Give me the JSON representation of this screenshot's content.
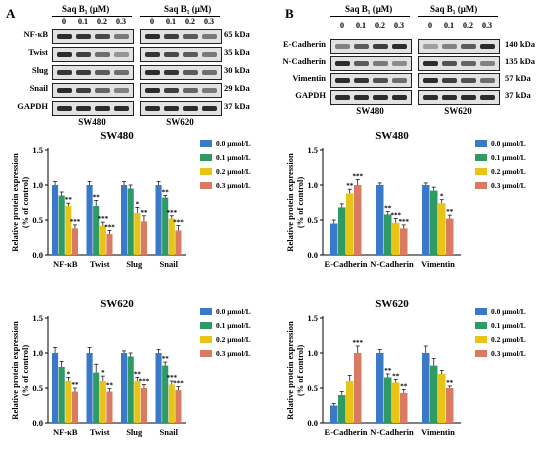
{
  "panels": [
    {
      "letter": "A",
      "blots": {
        "treatment_labels": [
          "Saq B₁ (μM)",
          "Saq B₁ (μM)"
        ],
        "concentrations": [
          "0",
          "0.1",
          "0.2",
          "0.3"
        ],
        "cell_lines": [
          "SW480",
          "SW620"
        ],
        "rows": [
          {
            "protein": "NF-κB",
            "kda": "65 kDa"
          },
          {
            "protein": "Twist",
            "kda": "35 kDa"
          },
          {
            "protein": "Slug",
            "kda": "30 kDa"
          },
          {
            "protein": "Snail",
            "kda": "29 kDa"
          },
          {
            "protein": "GAPDH",
            "kda": "37 kDa"
          }
        ]
      }
    },
    {
      "letter": "B",
      "blots": {
        "treatment_labels": [
          "Saq B₁ (μM)",
          "Saq B₁ (μM)"
        ],
        "concentrations": [
          "0",
          "0.1",
          "0.2",
          "0.3"
        ],
        "cell_lines": [
          "SW480",
          "SW620"
        ],
        "rows": [
          {
            "protein": "E-Cadherin",
            "kda": "140 kDa"
          },
          {
            "protein": "N-Cadherin",
            "kda": "135 kDa"
          },
          {
            "protein": "Vimentin",
            "kda": "57 kDa"
          },
          {
            "protein": "GAPDH",
            "kda": "37 kDa"
          }
        ]
      }
    }
  ],
  "colors": {
    "series": [
      "#3a78c8",
      "#2f9a63",
      "#e8c418",
      "#d97b62"
    ],
    "axis": "#000000"
  },
  "chart_data": [
    {
      "type": "bar",
      "title": "SW480",
      "ylabel": "Relative protein expression\n(% of control)",
      "ylim": [
        0,
        1.5
      ],
      "yticks": [
        "0.0",
        "0.5",
        "1.0",
        "1.5"
      ],
      "categories": [
        "NF-κB",
        "Twist",
        "Slug",
        "Snail"
      ],
      "legend_position": "top-right",
      "series": [
        {
          "name": "0.0 μmol/L",
          "values": [
            1.0,
            1.0,
            1.0,
            1.0
          ],
          "errors": [
            0.05,
            0.05,
            0.05,
            0.05
          ],
          "sig": [
            "",
            "",
            "",
            ""
          ]
        },
        {
          "name": "0.1 μmol/L",
          "values": [
            0.85,
            0.7,
            0.95,
            0.82
          ],
          "errors": [
            0.05,
            0.08,
            0.05,
            0.03
          ],
          "sig": [
            "",
            "**",
            "",
            "**"
          ]
        },
        {
          "name": "0.2 μmol/L",
          "values": [
            0.7,
            0.42,
            0.6,
            0.52
          ],
          "errors": [
            0.04,
            0.05,
            0.08,
            0.04
          ],
          "sig": [
            "**",
            "***",
            "*",
            "***"
          ]
        },
        {
          "name": "0.3 μmol/L",
          "values": [
            0.38,
            0.3,
            0.48,
            0.35
          ],
          "errors": [
            0.05,
            0.05,
            0.08,
            0.07
          ],
          "sig": [
            "***",
            "***",
            "**",
            "***"
          ]
        }
      ]
    },
    {
      "type": "bar",
      "title": "SW480",
      "ylabel": "Relative protein expression\n(% of control)",
      "ylim": [
        0,
        1.5
      ],
      "yticks": [
        "0.0",
        "0.5",
        "1.0",
        "1.5"
      ],
      "categories": [
        "E-Cadherin",
        "N-Cadherin",
        "Vimentin"
      ],
      "legend_position": "top-right",
      "series": [
        {
          "name": "0.0 μmol/L",
          "values": [
            0.45,
            1.0,
            1.0
          ],
          "errors": [
            0.05,
            0.03,
            0.03
          ],
          "sig": [
            "",
            "",
            ""
          ]
        },
        {
          "name": "0.1 μmol/L",
          "values": [
            0.68,
            0.58,
            0.92
          ],
          "errors": [
            0.05,
            0.04,
            0.05
          ],
          "sig": [
            "",
            "**",
            ""
          ]
        },
        {
          "name": "0.2 μmol/L",
          "values": [
            0.88,
            0.46,
            0.74
          ],
          "errors": [
            0.06,
            0.06,
            0.05
          ],
          "sig": [
            "**",
            "***",
            "*"
          ]
        },
        {
          "name": "0.3 μmol/L",
          "values": [
            1.0,
            0.38,
            0.52
          ],
          "errors": [
            0.08,
            0.05,
            0.05
          ],
          "sig": [
            "***",
            "***",
            "**"
          ]
        }
      ]
    },
    {
      "type": "bar",
      "title": "SW620",
      "ylabel": "Relative protein expression\n(% of control)",
      "ylim": [
        0,
        1.5
      ],
      "yticks": [
        "0.0",
        "0.5",
        "1.0",
        "1.5"
      ],
      "categories": [
        "NF-κB",
        "Twist",
        "Slug",
        "Snail"
      ],
      "legend_position": "top-right",
      "series": [
        {
          "name": "0.0 μmol/L",
          "values": [
            1.0,
            1.0,
            1.0,
            1.0
          ],
          "errors": [
            0.08,
            0.08,
            0.03,
            0.05
          ],
          "sig": [
            "",
            "",
            "",
            ""
          ]
        },
        {
          "name": "0.1 μmol/L",
          "values": [
            0.8,
            0.72,
            0.95,
            0.82
          ],
          "errors": [
            0.08,
            0.12,
            0.05,
            0.05
          ],
          "sig": [
            "",
            "",
            "",
            "**"
          ]
        },
        {
          "name": "0.2 μmol/L",
          "values": [
            0.6,
            0.6,
            0.6,
            0.55
          ],
          "errors": [
            0.05,
            0.07,
            0.05,
            0.05
          ],
          "sig": [
            "*",
            "*",
            "**",
            "***"
          ]
        },
        {
          "name": "0.3 μmol/L",
          "values": [
            0.45,
            0.45,
            0.5,
            0.47
          ],
          "errors": [
            0.05,
            0.04,
            0.05,
            0.05
          ],
          "sig": [
            "**",
            "**",
            "***",
            "***"
          ]
        }
      ]
    },
    {
      "type": "bar",
      "title": "SW620",
      "ylabel": "Relative protein expression\n(% of control)",
      "ylim": [
        0,
        1.5
      ],
      "yticks": [
        "0.0",
        "0.5",
        "1.0",
        "1.5"
      ],
      "categories": [
        "E-Cadherin",
        "N-Cadherin",
        "Vimentin"
      ],
      "legend_position": "top-right",
      "series": [
        {
          "name": "0.0 μmol/L",
          "values": [
            0.25,
            1.0,
            1.0
          ],
          "errors": [
            0.03,
            0.05,
            0.1
          ],
          "sig": [
            "",
            "",
            ""
          ]
        },
        {
          "name": "0.1 μmol/L",
          "values": [
            0.4,
            0.65,
            0.82
          ],
          "errors": [
            0.05,
            0.05,
            0.1
          ],
          "sig": [
            "",
            "**",
            ""
          ]
        },
        {
          "name": "0.2 μmol/L",
          "values": [
            0.6,
            0.58,
            0.7
          ],
          "errors": [
            0.08,
            0.04,
            0.05
          ],
          "sig": [
            "",
            "**",
            ""
          ]
        },
        {
          "name": "0.3 μmol/L",
          "values": [
            1.0,
            0.43,
            0.5
          ],
          "errors": [
            0.1,
            0.05,
            0.03
          ],
          "sig": [
            "***",
            "**",
            "**"
          ]
        }
      ]
    }
  ]
}
